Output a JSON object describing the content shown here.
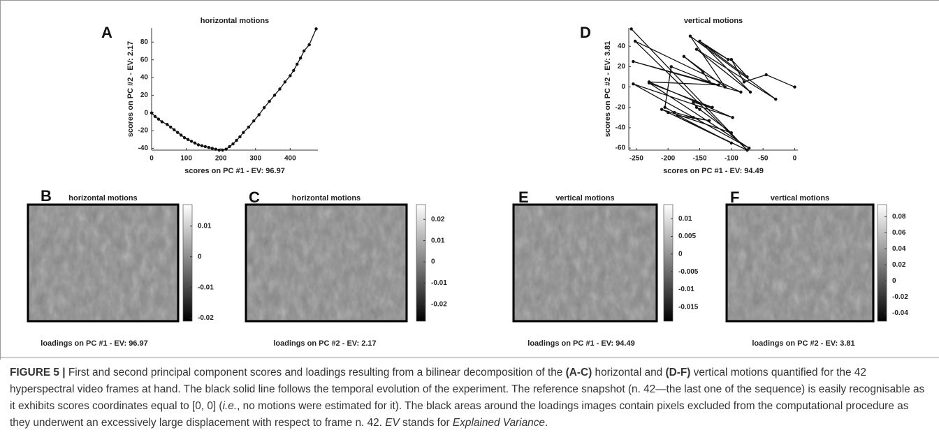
{
  "chart_data": [
    {
      "type": "line",
      "label": "A",
      "title": "horizontal motions",
      "xlabel": "scores on PC #1 - EV: 96.97",
      "ylabel": "scores on PC #2 - EV: 2.17",
      "x": [
        0,
        10,
        20,
        30,
        45,
        55,
        65,
        75,
        85,
        95,
        105,
        115,
        125,
        135,
        145,
        155,
        165,
        175,
        185,
        195,
        205,
        215,
        225,
        235,
        245,
        255,
        265,
        280,
        295,
        310,
        325,
        340,
        355,
        370,
        385,
        400,
        410,
        420,
        430,
        440,
        455,
        475
      ],
      "y": [
        0,
        -4,
        -7,
        -10,
        -13,
        -16,
        -19,
        -22,
        -25,
        -28,
        -30,
        -32,
        -34,
        -36,
        -37,
        -38,
        -39,
        -40,
        -41,
        -42,
        -42,
        -41,
        -38,
        -35,
        -31,
        -27,
        -22,
        -16,
        -9,
        -2,
        6,
        13,
        20,
        27,
        35,
        42,
        48,
        55,
        62,
        70,
        77,
        95
      ],
      "color": "#111111",
      "xlim": [
        0,
        480
      ],
      "xticks": [
        0,
        100,
        200,
        300,
        400
      ],
      "ylim": [
        -42,
        96
      ],
      "yticks": [
        -40,
        -20,
        0,
        20,
        40,
        60,
        80
      ]
    },
    {
      "type": "line",
      "label": "D",
      "title": "vertical motions",
      "xlabel": "scores on PC #1 - EV: 94.49",
      "ylabel": "scores on PC #2 - EV: 3.81",
      "x": [
        -258,
        -75,
        -252,
        -85,
        -255,
        -120,
        -230,
        -98,
        -255,
        -72,
        -230,
        -130,
        -160,
        -155,
        -150,
        -100,
        -210,
        -75,
        -200,
        -100,
        -185,
        -135,
        -160,
        -190,
        -205,
        -195,
        -135,
        -145,
        -175,
        -110,
        -165,
        -30,
        -155,
        -70,
        -150,
        -105,
        -140,
        -75,
        -100,
        -80,
        -45,
        0
      ],
      "y": [
        57,
        -62,
        45,
        -5,
        25,
        2,
        5,
        -30,
        3,
        -60,
        4,
        -20,
        -15,
        -20,
        -22,
        -45,
        -22,
        -62,
        -25,
        -55,
        -28,
        -33,
        -30,
        -25,
        -20,
        20,
        5,
        15,
        30,
        0,
        50,
        -12,
        37,
        -5,
        45,
        27,
        40,
        10,
        27,
        5,
        12,
        0
      ],
      "color": "#111111",
      "xlim": [
        -262,
        5
      ],
      "xticks": [
        -250,
        -200,
        -150,
        -100,
        -50,
        0
      ],
      "ylim": [
        -62,
        58
      ],
      "yticks": [
        -60,
        -40,
        -20,
        0,
        20,
        40
      ]
    },
    {
      "type": "heatmap",
      "label": "B",
      "title": "horizontal motions",
      "xlabel": "loadings on PC #1 - EV: 96.97",
      "clim": [
        -0.021,
        0.017
      ],
      "cticks": [
        0.01,
        0,
        -0.01,
        -0.02
      ]
    },
    {
      "type": "heatmap",
      "label": "C",
      "title": "horizontal motions",
      "xlabel": "loadings on PC #2 - EV: 2.17",
      "clim": [
        -0.028,
        0.027
      ],
      "cticks": [
        0.02,
        0.01,
        0,
        -0.01,
        -0.02
      ]
    },
    {
      "type": "heatmap",
      "label": "E",
      "title": "vertical motions",
      "xlabel": "loadings on PC #1 - EV: 94.49",
      "clim": [
        -0.019,
        0.014
      ],
      "cticks": [
        0.01,
        0.005,
        0,
        -0.005,
        -0.01,
        -0.015
      ]
    },
    {
      "type": "heatmap",
      "label": "F",
      "title": "vertical motions",
      "xlabel": "loadings on PC #2 - EV: 3.81",
      "clim": [
        -0.05,
        0.095
      ],
      "cticks": [
        0.08,
        0.06,
        0.04,
        0.02,
        0,
        -0.02,
        -0.04
      ]
    }
  ],
  "caption": {
    "parts": [
      "FIGURE 5 |",
      " First and second principal component scores and loadings resulting from a bilinear decomposition of the ",
      "(A-C)",
      " horizontal and ",
      "(D-F)",
      " vertical motions quantified for the 42 hyperspectral video frames at hand. The black solid line follows the temporal evolution of the experiment. The reference snapshot (n. 42—the last one of the sequence) is easily recognisable as it exhibits scores coordinates equal to [0, 0] (",
      "i.e.",
      ", no motions were estimated for it). The black areas around the loadings images contain pixels excluded from the computational procedure as they underwent an excessively large displacement with respect to frame n. 42. ",
      "EV",
      " stands for ",
      "Explained Variance",
      "."
    ]
  }
}
